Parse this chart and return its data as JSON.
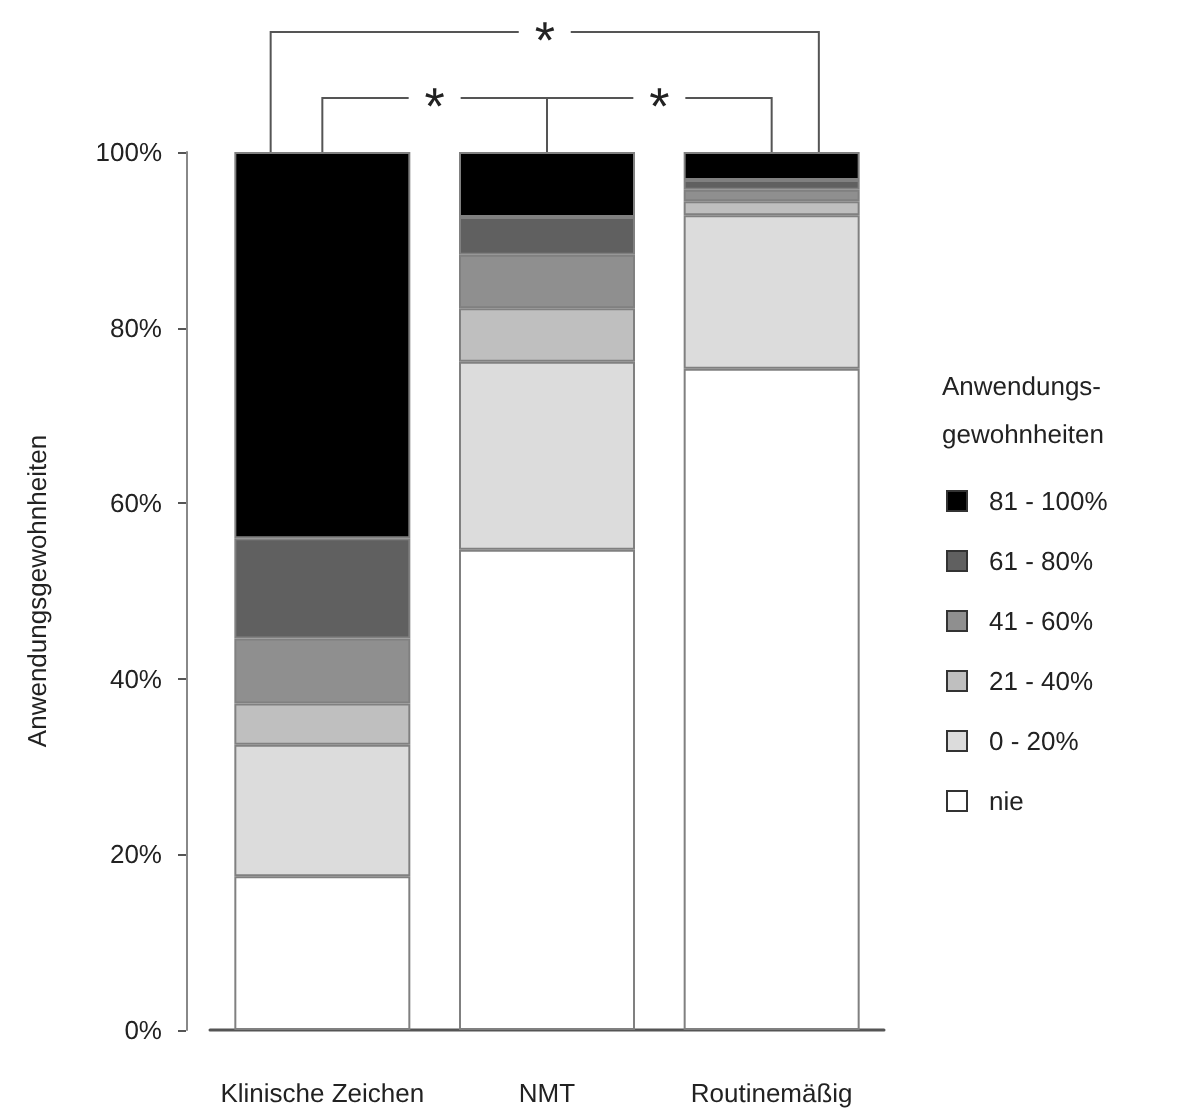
{
  "chart_data": {
    "type": "bar",
    "stacked": true,
    "categories": [
      "Klinische Zeichen",
      "NMT",
      "Routinemäßig"
    ],
    "series": [
      {
        "name": "nie",
        "color": "#ffffff",
        "values": [
          17.5,
          54.7,
          75.3
        ]
      },
      {
        "name": "0 - 20%",
        "color": "#dcdcdc",
        "values": [
          15,
          21.4,
          17.5
        ]
      },
      {
        "name": "21 - 40%",
        "color": "#bfbfbf",
        "values": [
          4.7,
          6.1,
          1.6
        ]
      },
      {
        "name": "41 - 60%",
        "color": "#8f8f8f",
        "values": [
          7.4,
          6.1,
          1.3
        ]
      },
      {
        "name": "61 - 80%",
        "color": "#606060",
        "values": [
          11.4,
          4.3,
          1.1
        ]
      },
      {
        "name": "81 - 100%",
        "color": "#000000",
        "values": [
          44,
          7.4,
          3.2
        ]
      }
    ],
    "ylabel": "Anwendungsgewohnheiten",
    "ylim": [
      0,
      100
    ],
    "yticks": [
      {
        "value": 0,
        "label": "0%"
      },
      {
        "value": 20,
        "label": "20%"
      },
      {
        "value": 40,
        "label": "40%"
      },
      {
        "value": 60,
        "label": "60%"
      },
      {
        "value": 80,
        "label": "80%"
      },
      {
        "value": 100,
        "label": "100%"
      }
    ],
    "legend_title": "Anwendungs-\ngewohnheiten",
    "legend": "right",
    "grid": false,
    "annotations": [
      "*",
      "*",
      "*"
    ]
  }
}
